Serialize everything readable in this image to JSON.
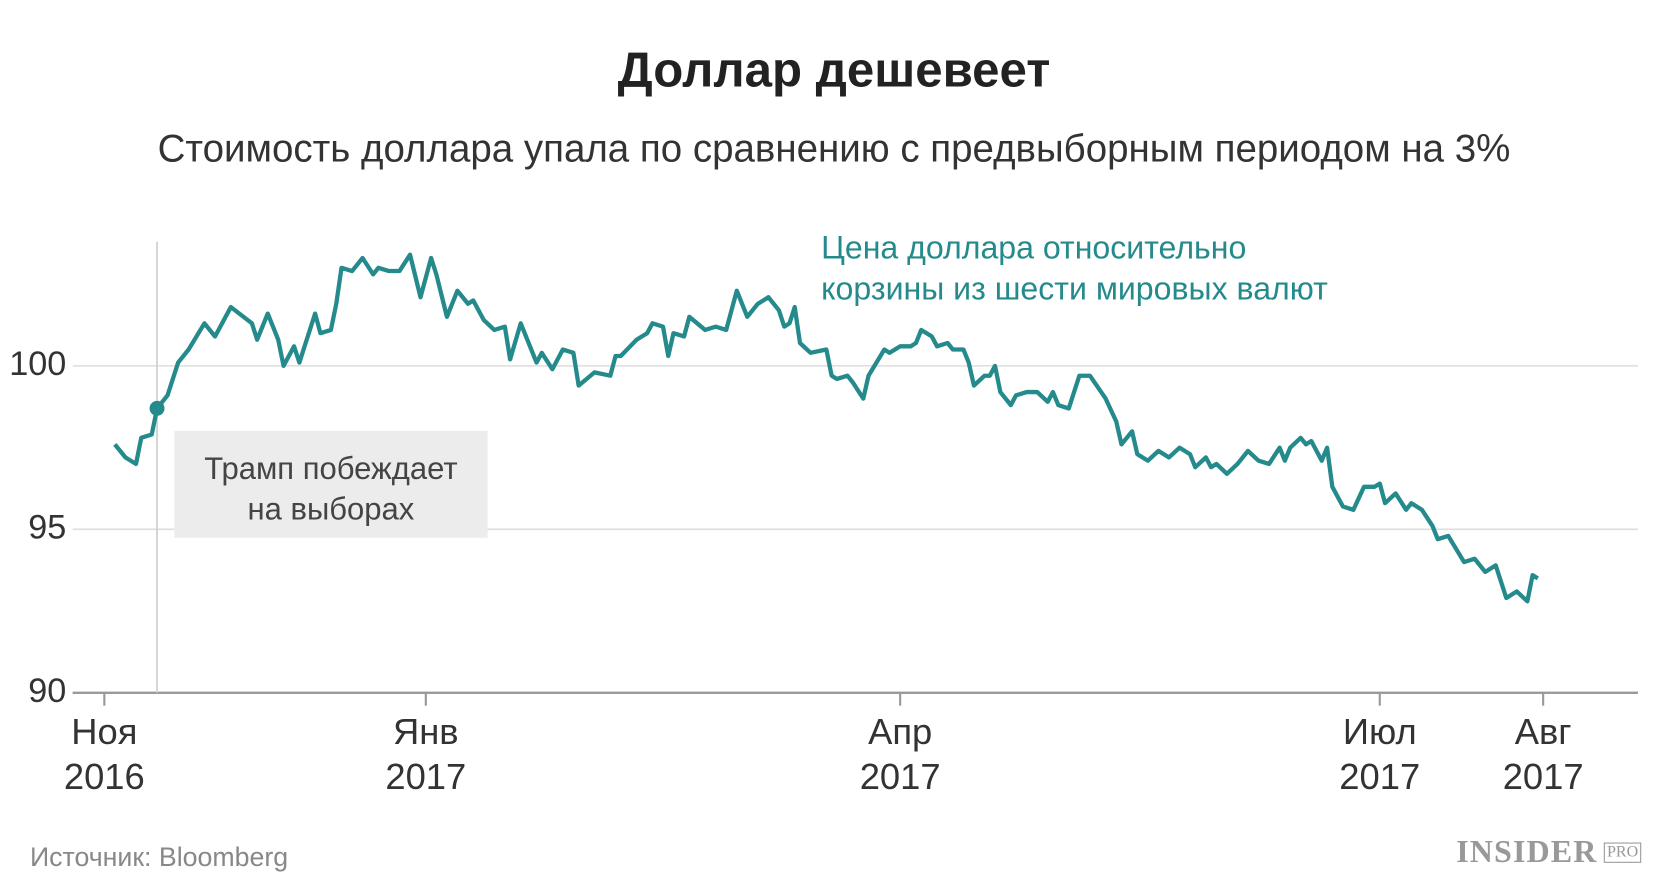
{
  "chart_data": {
    "type": "line",
    "title": "Доллар дешевеет",
    "subtitle": "Стоимость доллара упала по сравнению с предвыборным периодом на 3%",
    "x": [
      2,
      4,
      6,
      7,
      9,
      10,
      12,
      14,
      16,
      19,
      21,
      24,
      28,
      29,
      31,
      33,
      34,
      36,
      37,
      40,
      41,
      43,
      44,
      45,
      47,
      49,
      51,
      52,
      54,
      56,
      58,
      60,
      62,
      63,
      65,
      67,
      69,
      70,
      72,
      74,
      76,
      77,
      79,
      82,
      83,
      85,
      87,
      89,
      90,
      93,
      96,
      97,
      98,
      101,
      103,
      104,
      106,
      107,
      108,
      110,
      111,
      114,
      116,
      118,
      120,
      122,
      124,
      126,
      128,
      129,
      130,
      131,
      132,
      134,
      137,
      138,
      139,
      141,
      142,
      144,
      145,
      148,
      149,
      151,
      153,
      154,
      155,
      157,
      158,
      160,
      161,
      163,
      164,
      165,
      167,
      168,
      169,
      170,
      172,
      173,
      175,
      177,
      179,
      180,
      181,
      183,
      185,
      187,
      190,
      192,
      193,
      195,
      196,
      198,
      200,
      202,
      204,
      206,
      207,
      209,
      210,
      211,
      213,
      215,
      217,
      219,
      221,
      223,
      224,
      225,
      227,
      228,
      229,
      231,
      232,
      233,
      235,
      237,
      239,
      241,
      242,
      243,
      245,
      247,
      248,
      250,
      252,
      253,
      255,
      258,
      260,
      262,
      264,
      266,
      268,
      270,
      271,
      272
    ],
    "series": [
      {
        "name": "Цена доллара относительно\nкорзины из шести мировых валют",
        "color": "#248a8c",
        "values": [
          97.6,
          97.2,
          97.0,
          97.8,
          97.9,
          98.7,
          99.1,
          100.1,
          100.5,
          101.3,
          100.9,
          101.8,
          101.3,
          100.8,
          101.6,
          100.8,
          100.0,
          100.6,
          100.1,
          101.6,
          101.0,
          101.1,
          101.9,
          103.0,
          102.9,
          103.3,
          102.8,
          103.0,
          102.9,
          102.9,
          103.4,
          102.1,
          103.3,
          102.8,
          101.5,
          102.3,
          101.9,
          102.0,
          101.4,
          101.1,
          101.2,
          100.2,
          101.3,
          100.1,
          100.4,
          99.9,
          100.5,
          100.4,
          99.4,
          99.8,
          99.7,
          100.3,
          100.3,
          100.8,
          101.0,
          101.3,
          101.2,
          100.3,
          101.0,
          100.9,
          101.5,
          101.1,
          101.2,
          101.1,
          102.3,
          101.5,
          101.9,
          102.1,
          101.7,
          101.2,
          101.3,
          101.8,
          100.7,
          100.4,
          100.5,
          99.7,
          99.6,
          99.7,
          99.5,
          99.0,
          99.7,
          100.5,
          100.4,
          100.6,
          100.6,
          100.7,
          101.1,
          100.9,
          100.6,
          100.7,
          100.5,
          100.5,
          100.1,
          99.4,
          99.7,
          99.7,
          100.0,
          99.2,
          98.8,
          99.1,
          99.2,
          99.2,
          98.9,
          99.2,
          98.8,
          98.7,
          99.7,
          99.7,
          99.0,
          98.3,
          97.6,
          98.0,
          97.3,
          97.1,
          97.4,
          97.2,
          97.5,
          97.3,
          96.9,
          97.2,
          96.9,
          97.0,
          96.7,
          97.0,
          97.4,
          97.1,
          97.0,
          97.5,
          97.1,
          97.5,
          97.8,
          97.6,
          97.7,
          97.1,
          97.5,
          96.3,
          95.7,
          95.6,
          96.3,
          96.3,
          96.4,
          95.8,
          96.1,
          95.6,
          95.8,
          95.6,
          95.1,
          94.7,
          94.8,
          94.0,
          94.1,
          93.7,
          93.9,
          92.9,
          93.1,
          92.8,
          93.6,
          93.5
        ]
      }
    ],
    "xlim": [
      -6,
      291
    ],
    "xticks": [
      {
        "value": 0,
        "label": "Ноя\n2016"
      },
      {
        "value": 61,
        "label": "Янв\n2017"
      },
      {
        "value": 151,
        "label": "Апр\n2017"
      },
      {
        "value": 242,
        "label": "Июл\n2017"
      },
      {
        "value": 273,
        "label": "Авг\n2017"
      }
    ],
    "ylim": [
      90,
      103.8
    ],
    "yticks": [
      90,
      95,
      100
    ],
    "grid": true,
    "event": {
      "label": "Трамп побеждает\nна выборах",
      "x": 10,
      "value": 98.7
    },
    "source": "Источник: Bloomberg",
    "logo": {
      "name": "INSIDER",
      "badge": "PRO"
    }
  }
}
